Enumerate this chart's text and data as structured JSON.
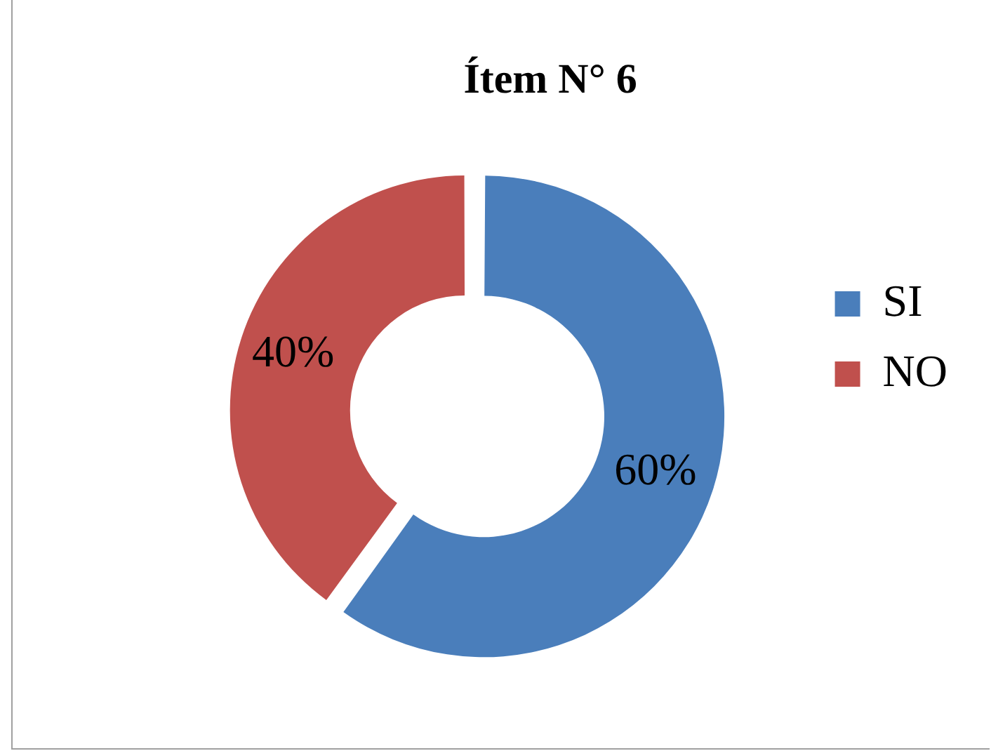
{
  "chart_data": {
    "type": "donut",
    "title": "Ítem N° 6",
    "categories": [
      "SI",
      "NO"
    ],
    "values": [
      60,
      40
    ],
    "colors": [
      "#4a7ebb",
      "#c0504d"
    ],
    "value_labels": [
      "60%",
      "40%"
    ],
    "legend": "right"
  }
}
